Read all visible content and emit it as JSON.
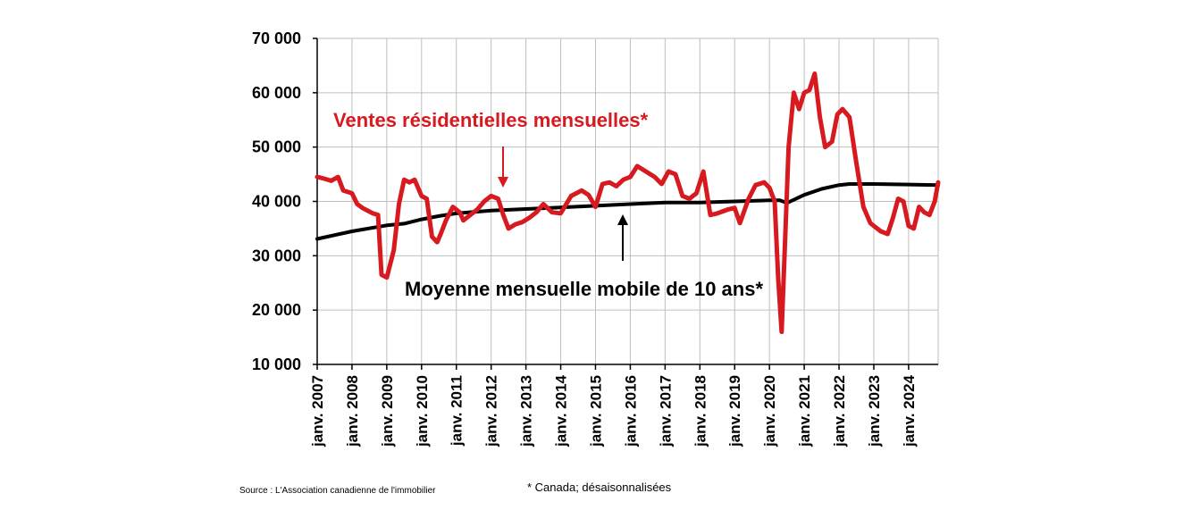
{
  "chart_data": {
    "type": "line",
    "ylim": [
      10000,
      70000
    ],
    "yticks": [
      10000,
      20000,
      30000,
      40000,
      50000,
      60000,
      70000
    ],
    "ytick_labels": [
      "10 000",
      "20 000",
      "30 000",
      "40 000",
      "50 000",
      "60 000",
      "70 000"
    ],
    "xlim": [
      2007.0,
      2024.85
    ],
    "x_tick_labels": [
      "janv. 2007",
      "janv. 2008",
      "janv. 2009",
      "janv. 2010",
      "janv. 2011",
      "janv. 2012",
      "janv. 2013",
      "janv. 2014",
      "janv. 2015",
      "janv. 2016",
      "janv. 2017",
      "janv. 2018",
      "janv. 2019",
      "janv. 2020",
      "janv. 2021",
      "janv. 2022",
      "janv. 2023",
      "janv. 2024"
    ],
    "grid": true,
    "series": [
      {
        "name": "Ventes résidentielles mensuelles*",
        "color": "#d71920",
        "x": [
          2007.0,
          2007.2,
          2007.4,
          2007.6,
          2007.75,
          2008.0,
          2008.15,
          2008.3,
          2008.6,
          2008.75,
          2008.85,
          2009.0,
          2009.2,
          2009.35,
          2009.5,
          2009.65,
          2009.8,
          2010.0,
          2010.15,
          2010.3,
          2010.45,
          2010.55,
          2010.7,
          2010.9,
          2011.1,
          2011.2,
          2011.4,
          2011.6,
          2011.8,
          2012.0,
          2012.2,
          2012.35,
          2012.5,
          2012.7,
          2012.9,
          2013.1,
          2013.3,
          2013.5,
          2013.75,
          2014.0,
          2014.3,
          2014.6,
          2014.8,
          2015.0,
          2015.2,
          2015.4,
          2015.6,
          2015.8,
          2016.0,
          2016.2,
          2016.45,
          2016.7,
          2016.9,
          2017.1,
          2017.3,
          2017.5,
          2017.7,
          2017.9,
          2018.1,
          2018.3,
          2018.5,
          2018.8,
          2019.0,
          2019.15,
          2019.4,
          2019.6,
          2019.85,
          2020.0,
          2020.15,
          2020.25,
          2020.35,
          2020.55,
          2020.7,
          2020.85,
          2021.0,
          2021.15,
          2021.3,
          2021.45,
          2021.6,
          2021.8,
          2021.95,
          2022.1,
          2022.3,
          2022.5,
          2022.7,
          2022.9,
          2023.0,
          2023.2,
          2023.4,
          2023.55,
          2023.7,
          2023.85,
          2024.0,
          2024.15,
          2024.3,
          2024.45,
          2024.6,
          2024.75,
          2024.85
        ],
        "y": [
          44500,
          44200,
          43800,
          44500,
          42000,
          41500,
          39500,
          38800,
          37800,
          37500,
          26500,
          26000,
          31000,
          39500,
          44000,
          43500,
          44000,
          41000,
          40500,
          33500,
          32500,
          34000,
          36500,
          39000,
          38000,
          36500,
          37500,
          38500,
          40000,
          41000,
          40500,
          37500,
          35000,
          35800,
          36200,
          37000,
          38000,
          39500,
          38000,
          37800,
          41000,
          42000,
          41200,
          39000,
          43200,
          43500,
          42800,
          44000,
          44500,
          46500,
          45500,
          44500,
          43200,
          45500,
          45000,
          41000,
          40500,
          41500,
          45500,
          37500,
          37800,
          38500,
          38800,
          36000,
          40500,
          43000,
          43500,
          42500,
          40000,
          26000,
          16000,
          50000,
          60000,
          57000,
          60000,
          60500,
          63500,
          55500,
          50000,
          51000,
          56000,
          57000,
          55500,
          47000,
          39000,
          36000,
          35500,
          34500,
          34000,
          37000,
          40500,
          40000,
          35500,
          35000,
          39000,
          38000,
          37500,
          40000,
          43500
        ]
      },
      {
        "name": "Moyenne mensuelle mobile de 10 ans*",
        "color": "#000000",
        "x": [
          2007.0,
          2008.0,
          2009.0,
          2009.5,
          2010.0,
          2010.5,
          2011.0,
          2012.0,
          2013.0,
          2014.0,
          2015.0,
          2016.0,
          2017.0,
          2018.0,
          2019.0,
          2020.0,
          2020.3,
          2020.5,
          2021.0,
          2021.5,
          2022.0,
          2022.3,
          2023.0,
          2024.0,
          2024.85
        ],
        "y": [
          33100,
          34500,
          35600,
          35900,
          36700,
          37300,
          37800,
          38300,
          38600,
          38900,
          39200,
          39500,
          39800,
          39800,
          40000,
          40200,
          40200,
          39700,
          41200,
          42300,
          43000,
          43200,
          43200,
          43100,
          43000
        ]
      }
    ],
    "annotations": {
      "sales_label": "Ventes résidentielles mensuelles*",
      "average_label": "Moyenne mensuelle mobile de 10 ans*"
    }
  },
  "footer": {
    "source": "Source : L'Association canadienne de l'immobilier",
    "note": "* Canada; désaisonnalisées"
  }
}
